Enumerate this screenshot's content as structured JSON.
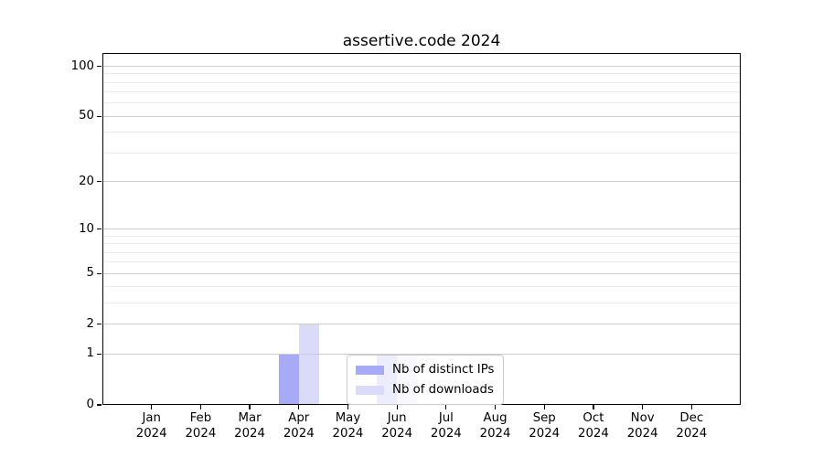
{
  "chart_data": {
    "type": "bar",
    "title": "assertive.code 2024",
    "categories": [
      "Jan 2024",
      "Feb 2024",
      "Mar 2024",
      "Apr 2024",
      "May 2024",
      "Jun 2024",
      "Jul 2024",
      "Aug 2024",
      "Sep 2024",
      "Oct 2024",
      "Nov 2024",
      "Dec 2024"
    ],
    "series": [
      {
        "name": "Nb of distinct IPs",
        "color": "#a7aaf6",
        "values": [
          0,
          0,
          0,
          1,
          0,
          1,
          0,
          0,
          0,
          0,
          0,
          0
        ]
      },
      {
        "name": "Nb of downloads",
        "color": "#d9dbf9",
        "values": [
          0,
          0,
          0,
          2,
          0,
          1,
          0,
          0,
          0,
          0,
          0,
          0
        ]
      }
    ],
    "xlabel": "",
    "ylabel": "",
    "y_scale": "log1p",
    "ylim": [
      0,
      120
    ],
    "y_ticks": [
      0,
      1,
      2,
      5,
      10,
      20,
      50,
      100
    ],
    "y_minor_ticks": [
      3,
      4,
      6,
      7,
      8,
      9,
      30,
      40,
      60,
      70,
      80,
      90
    ],
    "grid": "both",
    "legend_position": "lower center",
    "colors": {
      "grid_major": "#cccccc",
      "grid_minor": "#ebebeb",
      "spine": "#000000",
      "background": "#ffffff",
      "text": "#000000"
    }
  }
}
